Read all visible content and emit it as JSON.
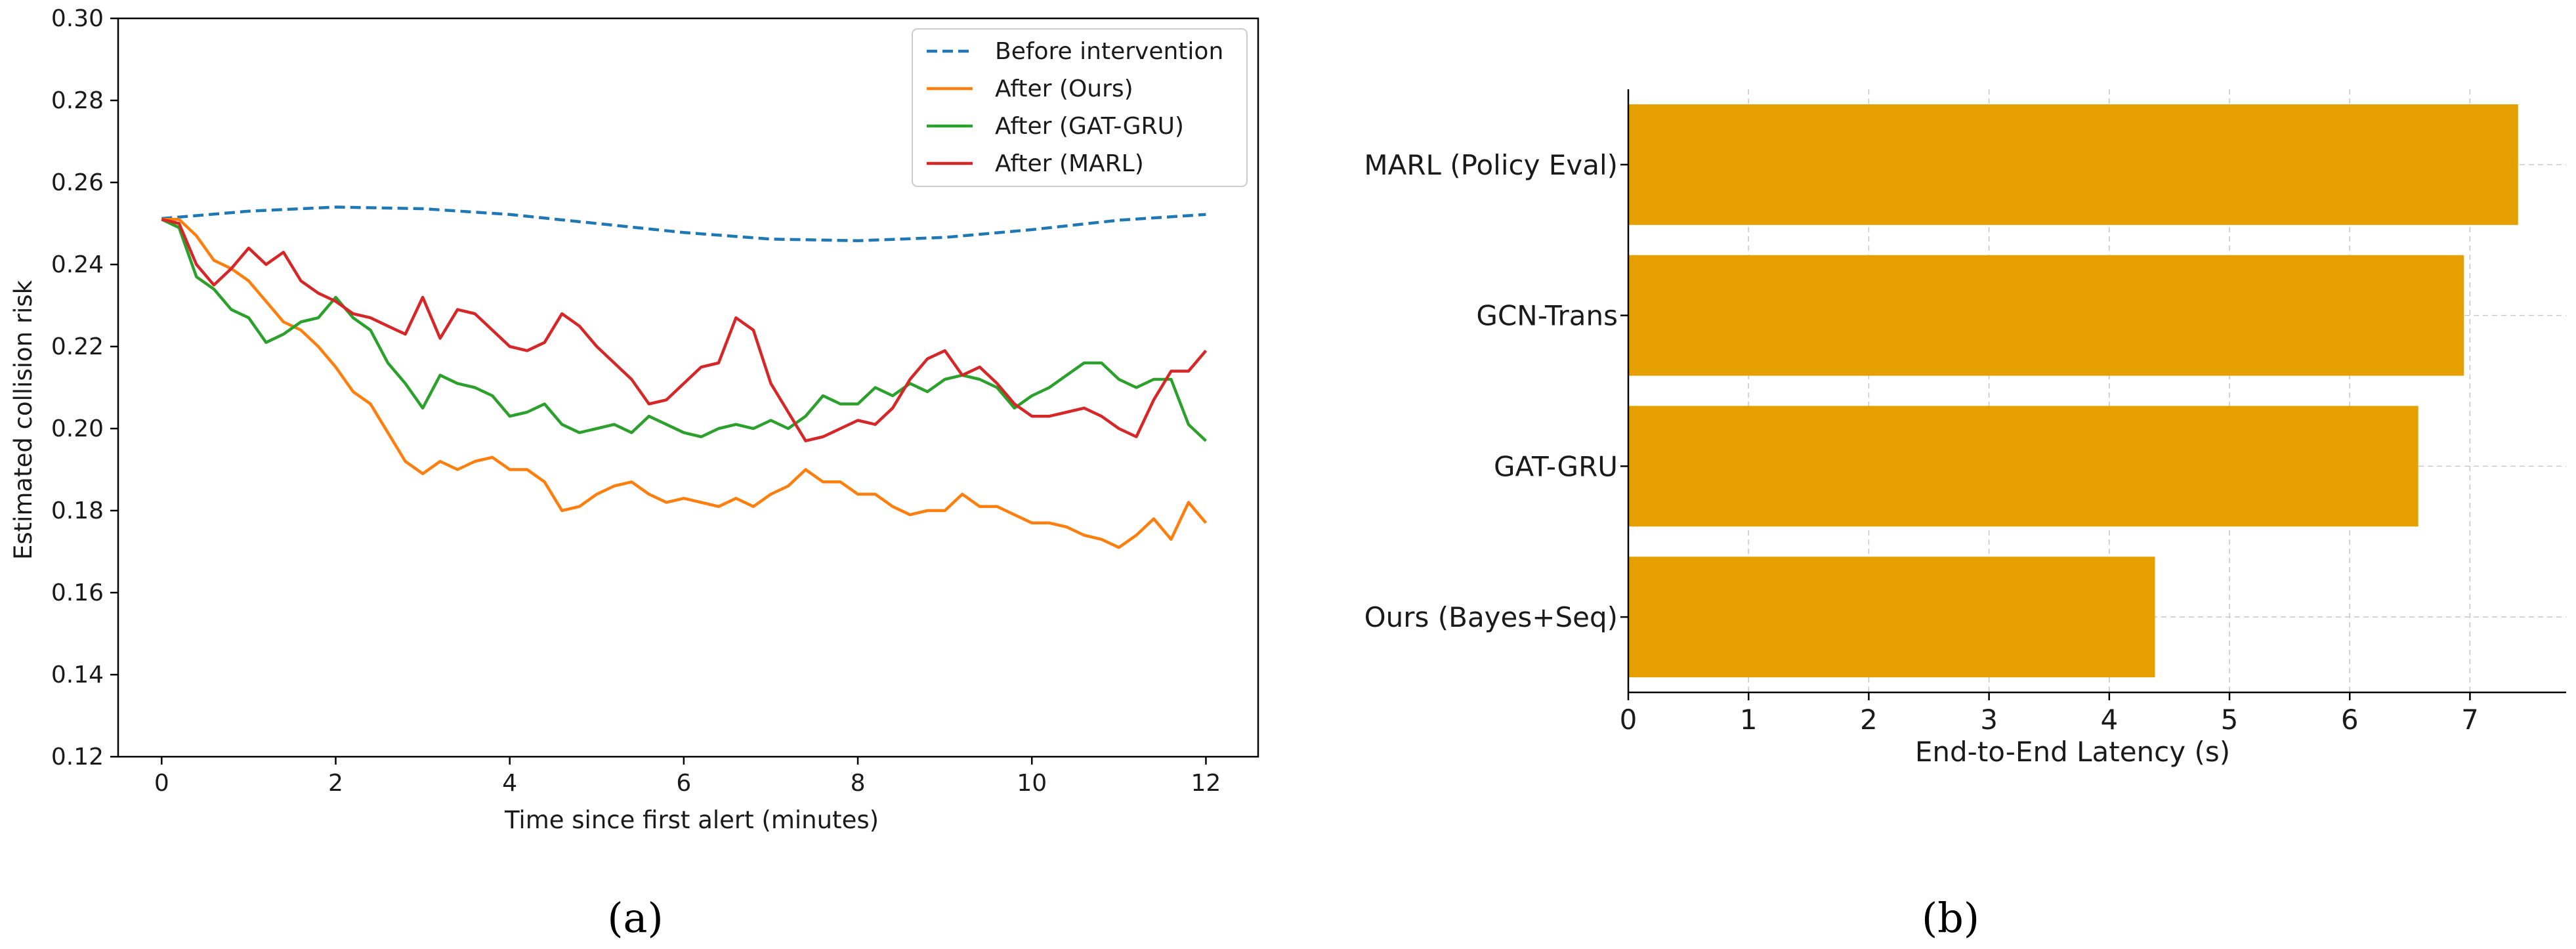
{
  "chart_data": [
    {
      "type": "line",
      "xlabel": "Time since first alert (minutes)",
      "ylabel": "Estimated collision risk",
      "xlim": [
        -0.5,
        12.6
      ],
      "ylim": [
        0.12,
        0.3
      ],
      "xticks": [
        "0",
        "2",
        "4",
        "6",
        "8",
        "10",
        "12"
      ],
      "yticks": [
        "0.12",
        "0.14",
        "0.16",
        "0.18",
        "0.20",
        "0.22",
        "0.24",
        "0.26",
        "0.28",
        "0.30"
      ],
      "legend_position": "top-right",
      "series": [
        {
          "name": "Before intervention",
          "color": "#1f77b4",
          "style": "dashed",
          "points": [
            [
              0,
              0.2512
            ],
            [
              1,
              0.253
            ],
            [
              2,
              0.254
            ],
            [
              3,
              0.2536
            ],
            [
              4,
              0.2522
            ],
            [
              5,
              0.25
            ],
            [
              6,
              0.2478
            ],
            [
              7,
              0.2462
            ],
            [
              8,
              0.2458
            ],
            [
              9,
              0.2466
            ],
            [
              10,
              0.2485
            ],
            [
              11,
              0.2508
            ],
            [
              12,
              0.2522
            ]
          ]
        },
        {
          "name": "After (Ours)",
          "color": "#ff7f0e",
          "style": "solid",
          "points": [
            [
              0,
              0.251
            ],
            [
              0.2,
              0.251
            ],
            [
              0.4,
              0.247
            ],
            [
              0.6,
              0.241
            ],
            [
              0.8,
              0.239
            ],
            [
              1,
              0.236
            ],
            [
              1.2,
              0.231
            ],
            [
              1.4,
              0.226
            ],
            [
              1.6,
              0.224
            ],
            [
              1.8,
              0.22
            ],
            [
              2,
              0.215
            ],
            [
              2.2,
              0.209
            ],
            [
              2.4,
              0.206
            ],
            [
              2.6,
              0.199
            ],
            [
              2.8,
              0.192
            ],
            [
              3,
              0.189
            ],
            [
              3.2,
              0.192
            ],
            [
              3.4,
              0.19
            ],
            [
              3.6,
              0.192
            ],
            [
              3.8,
              0.193
            ],
            [
              4,
              0.19
            ],
            [
              4.2,
              0.19
            ],
            [
              4.4,
              0.187
            ],
            [
              4.6,
              0.18
            ],
            [
              4.8,
              0.181
            ],
            [
              5,
              0.184
            ],
            [
              5.2,
              0.186
            ],
            [
              5.4,
              0.187
            ],
            [
              5.6,
              0.184
            ],
            [
              5.8,
              0.182
            ],
            [
              6,
              0.183
            ],
            [
              6.2,
              0.182
            ],
            [
              6.4,
              0.181
            ],
            [
              6.6,
              0.183
            ],
            [
              6.8,
              0.181
            ],
            [
              7,
              0.184
            ],
            [
              7.2,
              0.186
            ],
            [
              7.4,
              0.19
            ],
            [
              7.6,
              0.187
            ],
            [
              7.8,
              0.187
            ],
            [
              8,
              0.184
            ],
            [
              8.2,
              0.184
            ],
            [
              8.4,
              0.181
            ],
            [
              8.6,
              0.179
            ],
            [
              8.8,
              0.18
            ],
            [
              9,
              0.18
            ],
            [
              9.2,
              0.184
            ],
            [
              9.4,
              0.181
            ],
            [
              9.6,
              0.181
            ],
            [
              9.8,
              0.179
            ],
            [
              10,
              0.177
            ],
            [
              10.2,
              0.177
            ],
            [
              10.4,
              0.176
            ],
            [
              10.6,
              0.174
            ],
            [
              10.8,
              0.173
            ],
            [
              11,
              0.171
            ],
            [
              11.2,
              0.174
            ],
            [
              11.4,
              0.178
            ],
            [
              11.6,
              0.173
            ],
            [
              11.8,
              0.182
            ],
            [
              12,
              0.177
            ]
          ]
        },
        {
          "name": "After (GAT-GRU)",
          "color": "#2ca02c",
          "style": "solid",
          "points": [
            [
              0,
              0.251
            ],
            [
              0.2,
              0.249
            ],
            [
              0.4,
              0.237
            ],
            [
              0.6,
              0.234
            ],
            [
              0.8,
              0.229
            ],
            [
              1,
              0.227
            ],
            [
              1.2,
              0.221
            ],
            [
              1.4,
              0.223
            ],
            [
              1.6,
              0.226
            ],
            [
              1.8,
              0.227
            ],
            [
              2,
              0.232
            ],
            [
              2.2,
              0.227
            ],
            [
              2.4,
              0.224
            ],
            [
              2.6,
              0.216
            ],
            [
              2.8,
              0.211
            ],
            [
              3,
              0.205
            ],
            [
              3.2,
              0.213
            ],
            [
              3.4,
              0.211
            ],
            [
              3.6,
              0.21
            ],
            [
              3.8,
              0.208
            ],
            [
              4,
              0.203
            ],
            [
              4.2,
              0.204
            ],
            [
              4.4,
              0.206
            ],
            [
              4.6,
              0.201
            ],
            [
              4.8,
              0.199
            ],
            [
              5,
              0.2
            ],
            [
              5.2,
              0.201
            ],
            [
              5.4,
              0.199
            ],
            [
              5.6,
              0.203
            ],
            [
              5.8,
              0.201
            ],
            [
              6,
              0.199
            ],
            [
              6.2,
              0.198
            ],
            [
              6.4,
              0.2
            ],
            [
              6.6,
              0.201
            ],
            [
              6.8,
              0.2
            ],
            [
              7,
              0.202
            ],
            [
              7.2,
              0.2
            ],
            [
              7.4,
              0.203
            ],
            [
              7.6,
              0.208
            ],
            [
              7.8,
              0.206
            ],
            [
              8,
              0.206
            ],
            [
              8.2,
              0.21
            ],
            [
              8.4,
              0.208
            ],
            [
              8.6,
              0.211
            ],
            [
              8.8,
              0.209
            ],
            [
              9,
              0.212
            ],
            [
              9.2,
              0.213
            ],
            [
              9.4,
              0.212
            ],
            [
              9.6,
              0.21
            ],
            [
              9.8,
              0.205
            ],
            [
              10,
              0.208
            ],
            [
              10.2,
              0.21
            ],
            [
              10.4,
              0.213
            ],
            [
              10.6,
              0.216
            ],
            [
              10.8,
              0.216
            ],
            [
              11,
              0.212
            ],
            [
              11.2,
              0.21
            ],
            [
              11.4,
              0.212
            ],
            [
              11.6,
              0.212
            ],
            [
              11.8,
              0.201
            ],
            [
              12,
              0.197
            ]
          ]
        },
        {
          "name": "After (MARL)",
          "color": "#d62728",
          "style": "solid",
          "points": [
            [
              0,
              0.251
            ],
            [
              0.2,
              0.25
            ],
            [
              0.4,
              0.24
            ],
            [
              0.6,
              0.235
            ],
            [
              0.8,
              0.239
            ],
            [
              1,
              0.244
            ],
            [
              1.2,
              0.24
            ],
            [
              1.4,
              0.243
            ],
            [
              1.6,
              0.236
            ],
            [
              1.8,
              0.233
            ],
            [
              2,
              0.231
            ],
            [
              2.2,
              0.228
            ],
            [
              2.4,
              0.227
            ],
            [
              2.6,
              0.225
            ],
            [
              2.8,
              0.223
            ],
            [
              3,
              0.232
            ],
            [
              3.2,
              0.222
            ],
            [
              3.4,
              0.229
            ],
            [
              3.6,
              0.228
            ],
            [
              3.8,
              0.224
            ],
            [
              4,
              0.22
            ],
            [
              4.2,
              0.219
            ],
            [
              4.4,
              0.221
            ],
            [
              4.6,
              0.228
            ],
            [
              4.8,
              0.225
            ],
            [
              5,
              0.22
            ],
            [
              5.2,
              0.216
            ],
            [
              5.4,
              0.212
            ],
            [
              5.6,
              0.206
            ],
            [
              5.8,
              0.207
            ],
            [
              6,
              0.211
            ],
            [
              6.2,
              0.215
            ],
            [
              6.4,
              0.216
            ],
            [
              6.6,
              0.227
            ],
            [
              6.8,
              0.224
            ],
            [
              7,
              0.211
            ],
            [
              7.2,
              0.204
            ],
            [
              7.4,
              0.197
            ],
            [
              7.6,
              0.198
            ],
            [
              7.8,
              0.2
            ],
            [
              8,
              0.202
            ],
            [
              8.2,
              0.201
            ],
            [
              8.4,
              0.205
            ],
            [
              8.6,
              0.212
            ],
            [
              8.8,
              0.217
            ],
            [
              9,
              0.219
            ],
            [
              9.2,
              0.213
            ],
            [
              9.4,
              0.215
            ],
            [
              9.6,
              0.211
            ],
            [
              9.8,
              0.206
            ],
            [
              10,
              0.203
            ],
            [
              10.2,
              0.203
            ],
            [
              10.4,
              0.204
            ],
            [
              10.6,
              0.205
            ],
            [
              10.8,
              0.203
            ],
            [
              11,
              0.2
            ],
            [
              11.2,
              0.198
            ],
            [
              11.4,
              0.207
            ],
            [
              11.6,
              0.214
            ],
            [
              11.8,
              0.214
            ],
            [
              12,
              0.219
            ]
          ]
        }
      ]
    },
    {
      "type": "bar",
      "orientation": "horizontal",
      "xlabel": "End-to-End Latency (s)",
      "ylabel": "",
      "xlim": [
        0,
        7.8
      ],
      "xticks": [
        "0",
        "1",
        "2",
        "3",
        "4",
        "5",
        "6",
        "7"
      ],
      "grid": true,
      "categories": [
        "Ours (Bayes+Seq)",
        "GAT-GRU",
        "GCN-Trans",
        "MARL (Policy Eval)"
      ],
      "values": [
        4.38,
        6.57,
        6.95,
        7.4
      ],
      "color": "#e5a000"
    }
  ],
  "panel_labels": {
    "a": "(a)",
    "b": "(b)"
  }
}
